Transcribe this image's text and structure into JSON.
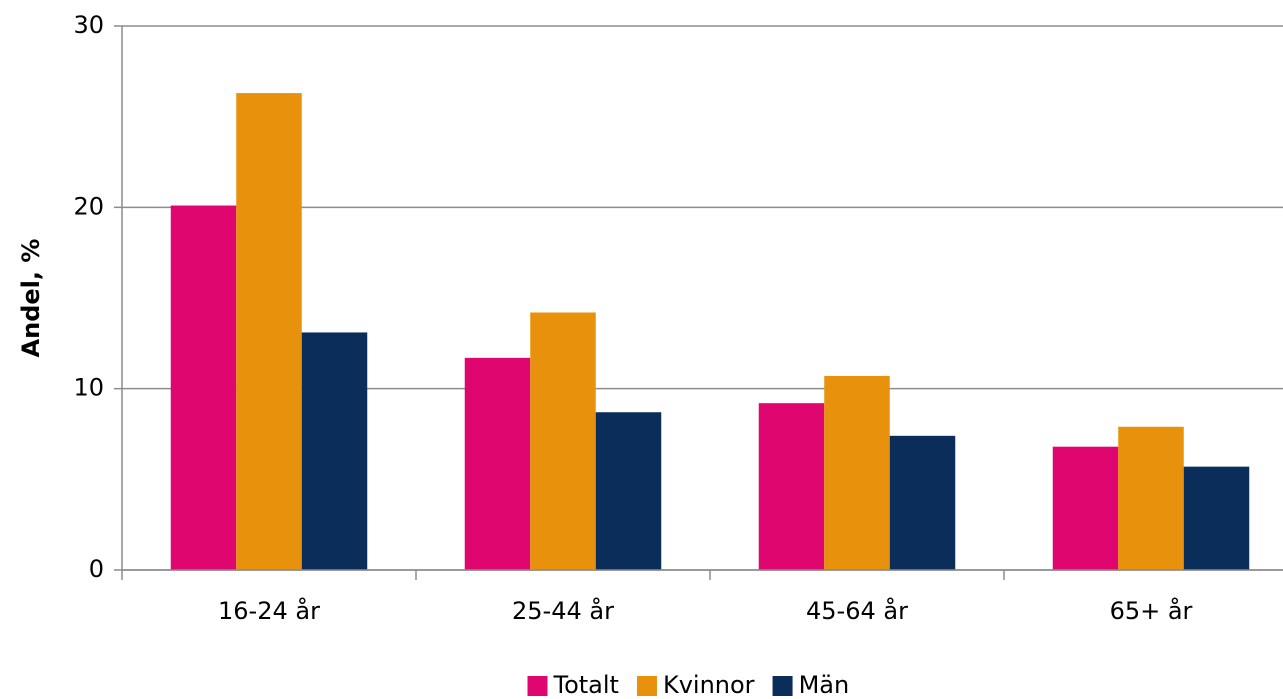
{
  "chart_data": {
    "type": "bar",
    "y_label": "Andel, %",
    "categories": [
      "16-24 år",
      "25-44 år",
      "45-64 år",
      "65+ år"
    ],
    "series": [
      {
        "name": "Totalt",
        "color": "#e0066f",
        "values": [
          20.1,
          11.7,
          9.2,
          6.8
        ]
      },
      {
        "name": "Kvinnor",
        "color": "#e8910c",
        "values": [
          26.3,
          14.2,
          10.7,
          7.9
        ]
      },
      {
        "name": "Män",
        "color": "#0a2d5a",
        "values": [
          13.1,
          8.7,
          7.4,
          5.7
        ]
      }
    ],
    "ylim": [
      0,
      30
    ],
    "yticks": [
      0,
      10,
      20,
      30
    ],
    "grid": true,
    "legend": "bottom"
  }
}
